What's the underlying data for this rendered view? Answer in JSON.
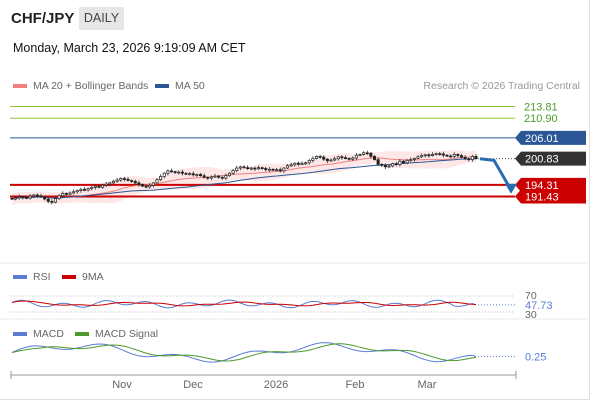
{
  "header": {
    "pair": "CHF/JPY",
    "timeframe": "DAILY",
    "datetime": "Monday, March 23, 2026 9:19:09 AM CET",
    "credit": "Research © 2026 Trading Central"
  },
  "legend": {
    "ma20_bb": "MA 20 + Bollinger Bands",
    "ma50": "MA 50",
    "rsi": "RSI",
    "rsi_ma": "9MA",
    "macd": "MACD",
    "macd_signal": "MACD Signal"
  },
  "colors": {
    "ma20": "#f08080",
    "ma50": "#2b5797",
    "bollinger_fill": "#fde3e3",
    "resistance": "#8cc63f",
    "pivot": "#2b5797",
    "support": "#cc0000",
    "rsi": "#5b7bd5",
    "rsi_ma": "#cc0000",
    "macd": "#5b7bd5",
    "macd_signal": "#4c9a2a"
  },
  "chart_data": [
    {
      "type": "candlestick",
      "title": "CHF/JPY",
      "ylim": [
        188.5,
        216.5
      ],
      "x_tick_labels": [
        "Nov",
        "Dec",
        "2026",
        "Feb",
        "Mar"
      ],
      "current_price": "200.83",
      "levels": [
        {
          "value": "213.81",
          "kind": "resistance"
        },
        {
          "value": "210.90",
          "kind": "resistance"
        },
        {
          "value": "206.01",
          "kind": "pivot"
        },
        {
          "value": "194.31",
          "kind": "support"
        },
        {
          "value": "191.43",
          "kind": "support"
        }
      ],
      "approx_closes": [
        190.8,
        191.1,
        191.4,
        191.2,
        191.0,
        191.5,
        191.8,
        191.6,
        191.3,
        190.8,
        190.2,
        190.0,
        190.9,
        191.6,
        192.2,
        192.0,
        192.3,
        192.6,
        192.9,
        193.2,
        193.0,
        193.4,
        193.7,
        194.0,
        193.7,
        194.2,
        194.5,
        194.8,
        195.2,
        195.5,
        195.9,
        195.7,
        195.4,
        195.2,
        194.8,
        194.4,
        194.0,
        193.8,
        194.2,
        194.8,
        195.6,
        196.4,
        197.2,
        197.8,
        197.6,
        197.4,
        197.5,
        197.2,
        197.0,
        197.1,
        196.8,
        196.9,
        196.6,
        196.2,
        196.0,
        196.3,
        196.5,
        196.2,
        196.0,
        196.6,
        197.2,
        197.9,
        198.5,
        198.8,
        198.6,
        198.4,
        198.5,
        198.3,
        198.6,
        198.4,
        198.1,
        198.2,
        198.0,
        198.1,
        197.8,
        198.5,
        199.1,
        199.3,
        199.7,
        199.5,
        199.6,
        199.8,
        200.4,
        200.9,
        201.4,
        201.2,
        200.7,
        200.3,
        200.5,
        200.8,
        201.3,
        201.1,
        200.9,
        200.7,
        201.0,
        201.7,
        201.9,
        202.3,
        202.2,
        201.4,
        200.6,
        199.4,
        199.2,
        198.8,
        199.0,
        199.6,
        199.4,
        200.2,
        199.8,
        200.4,
        200.6,
        200.9,
        201.3,
        201.6,
        201.8,
        201.6,
        201.9,
        202.1,
        202.0,
        201.7,
        201.5,
        201.4,
        201.9,
        201.6,
        201.2,
        200.8,
        200.6,
        201.4,
        200.83
      ],
      "forecast_path": [
        200.83,
        200.4,
        193.1
      ]
    },
    {
      "type": "line",
      "title": "RSI",
      "ylim": [
        25,
        75
      ],
      "y_tick_labels": [
        "70",
        "30"
      ],
      "value_label": "47.73",
      "series": [
        {
          "name": "RSI"
        },
        {
          "name": "9MA"
        }
      ]
    },
    {
      "type": "line",
      "title": "MACD",
      "value_label": "0.25",
      "series": [
        {
          "name": "MACD"
        },
        {
          "name": "MACD Signal"
        }
      ]
    }
  ]
}
